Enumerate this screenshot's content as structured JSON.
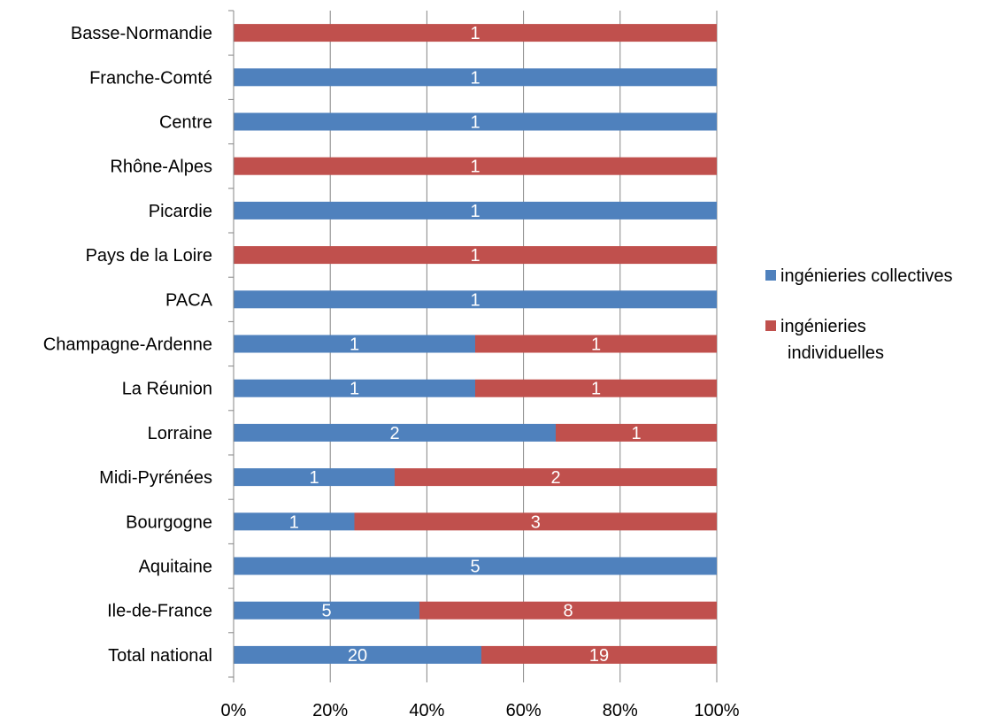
{
  "chart_data": {
    "type": "bar",
    "orientation": "horizontal",
    "stacked": "percent",
    "categories": [
      "Basse-Normandie",
      "Franche-Comté",
      "Centre",
      "Rhône-Alpes",
      "Picardie",
      "Pays de la Loire",
      "PACA",
      "Champagne-Ardenne",
      "La Réunion",
      "Lorraine",
      "Midi-Pyrénées",
      "Bourgogne",
      "Aquitaine",
      "Ile-de-France",
      "Total national"
    ],
    "series": [
      {
        "name": "ingénieries collectives",
        "color": "#4F81BD",
        "values": [
          0,
          1,
          1,
          0,
          1,
          0,
          1,
          1,
          1,
          2,
          1,
          1,
          5,
          5,
          20
        ]
      },
      {
        "name": "ingénieries individuelles",
        "color": "#C0504D",
        "values": [
          1,
          0,
          0,
          1,
          0,
          1,
          0,
          1,
          1,
          1,
          2,
          3,
          0,
          8,
          19
        ]
      }
    ],
    "x_ticks": [
      "0%",
      "20%",
      "40%",
      "60%",
      "80%",
      "100%"
    ],
    "xlim": [
      0,
      100
    ],
    "grid": true,
    "legend_position": "right",
    "legend_labels": [
      "ingénieries collectives",
      "ingénieries",
      "individuelles"
    ]
  }
}
